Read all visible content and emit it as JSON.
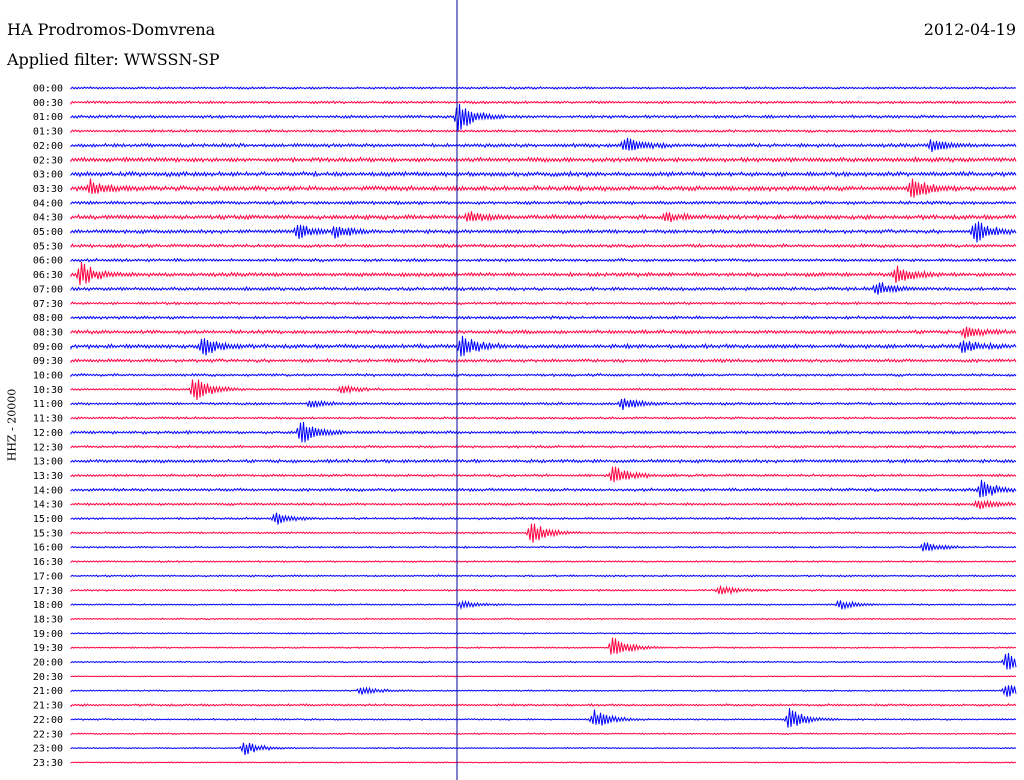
{
  "header": {
    "station": "HA Prodromos-Domvrena",
    "date": "2012-04-19",
    "filter": "Applied filter: WWSSN-SP"
  },
  "colors": {
    "even_trace": "#0000ff",
    "odd_trace": "#ff0040",
    "marker_line": "#000099"
  },
  "chart_data": {
    "type": "line",
    "title": "HA Prodromos-Domvrena",
    "ylabel": "HHZ - 20000",
    "rows": [
      "00:00",
      "00:30",
      "01:00",
      "01:30",
      "02:00",
      "02:30",
      "03:00",
      "03:30",
      "04:00",
      "04:30",
      "05:00",
      "05:30",
      "06:00",
      "06:30",
      "07:00",
      "07:30",
      "08:00",
      "08:30",
      "09:00",
      "09:30",
      "10:00",
      "10:30",
      "11:00",
      "11:30",
      "12:00",
      "12:30",
      "13:00",
      "13:30",
      "14:00",
      "14:30",
      "15:00",
      "15:30",
      "16:00",
      "16:30",
      "17:00",
      "17:30",
      "18:00",
      "18:30",
      "19:00",
      "19:30",
      "20:00",
      "20:30",
      "21:00",
      "21:30",
      "22:00",
      "22:30",
      "23:00",
      "23:30"
    ],
    "row_minutes": 30,
    "noise_level": [
      1.2,
      1.4,
      1.6,
      1.4,
      2.0,
      2.4,
      2.4,
      2.6,
      1.8,
      2.4,
      2.0,
      1.8,
      1.6,
      2.2,
      1.8,
      1.4,
      1.6,
      2.0,
      2.2,
      1.8,
      1.4,
      1.2,
      1.4,
      1.2,
      1.6,
      1.4,
      1.8,
      1.4,
      1.6,
      1.4,
      1.2,
      1.0,
      1.0,
      0.9,
      1.0,
      1.0,
      0.8,
      0.8,
      0.8,
      0.8,
      0.8,
      0.6,
      0.8,
      1.2,
      0.9,
      0.8,
      0.7,
      0.6
    ],
    "events": [
      {
        "row": 2,
        "minute": 12.3,
        "amp": 16
      },
      {
        "row": 4,
        "minute": 17.6,
        "amp": 8
      },
      {
        "row": 4,
        "minute": 27.3,
        "amp": 6
      },
      {
        "row": 7,
        "minute": 0.6,
        "amp": 8
      },
      {
        "row": 7,
        "minute": 26.7,
        "amp": 12
      },
      {
        "row": 9,
        "minute": 12.6,
        "amp": 6
      },
      {
        "row": 9,
        "minute": 18.9,
        "amp": 4
      },
      {
        "row": 10,
        "minute": 7.2,
        "amp": 8
      },
      {
        "row": 10,
        "minute": 8.4,
        "amp": 6
      },
      {
        "row": 10,
        "minute": 28.7,
        "amp": 12
      },
      {
        "row": 13,
        "minute": 0.3,
        "amp": 12
      },
      {
        "row": 13,
        "minute": 26.2,
        "amp": 9
      },
      {
        "row": 14,
        "minute": 25.6,
        "amp": 8
      },
      {
        "row": 17,
        "minute": 28.4,
        "amp": 6
      },
      {
        "row": 18,
        "minute": 4.2,
        "amp": 10
      },
      {
        "row": 18,
        "minute": 12.4,
        "amp": 12
      },
      {
        "row": 18,
        "minute": 28.3,
        "amp": 7
      },
      {
        "row": 21,
        "minute": 3.9,
        "amp": 14
      },
      {
        "row": 21,
        "minute": 8.6,
        "amp": 4
      },
      {
        "row": 22,
        "minute": 17.5,
        "amp": 6
      },
      {
        "row": 22,
        "minute": 7.6,
        "amp": 4
      },
      {
        "row": 24,
        "minute": 7.3,
        "amp": 12
      },
      {
        "row": 27,
        "minute": 17.2,
        "amp": 10
      },
      {
        "row": 28,
        "minute": 28.9,
        "amp": 10
      },
      {
        "row": 29,
        "minute": 28.8,
        "amp": 5
      },
      {
        "row": 30,
        "minute": 6.5,
        "amp": 6
      },
      {
        "row": 31,
        "minute": 14.6,
        "amp": 12
      },
      {
        "row": 32,
        "minute": 27.1,
        "amp": 5
      },
      {
        "row": 35,
        "minute": 20.6,
        "amp": 5
      },
      {
        "row": 36,
        "minute": 24.4,
        "amp": 5
      },
      {
        "row": 36,
        "minute": 12.4,
        "amp": 4
      },
      {
        "row": 39,
        "minute": 17.2,
        "amp": 12
      },
      {
        "row": 40,
        "minute": 29.7,
        "amp": 10
      },
      {
        "row": 42,
        "minute": 29.7,
        "amp": 8
      },
      {
        "row": 42,
        "minute": 9.2,
        "amp": 4
      },
      {
        "row": 44,
        "minute": 16.6,
        "amp": 10
      },
      {
        "row": 44,
        "minute": 22.8,
        "amp": 12
      },
      {
        "row": 46,
        "minute": 5.5,
        "amp": 7
      }
    ]
  }
}
